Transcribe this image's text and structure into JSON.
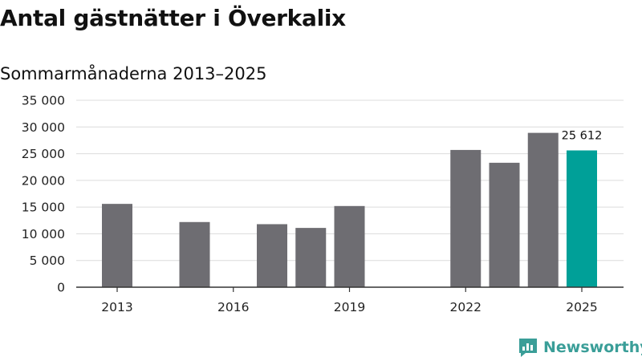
{
  "title": "Antal gästnätter i Överkalix",
  "subtitle": "Sommarmånaderna 2013–2025",
  "brand": "Newsworthy",
  "colors": {
    "bar": "#6e6d72",
    "highlight": "#00a098",
    "grid": "#dcdcdc",
    "axis": "#333333",
    "brand": "#3a9e98"
  },
  "chart_data": {
    "type": "bar",
    "title": "Antal gästnätter i Överkalix",
    "subtitle": "Sommarmånaderna 2013–2025",
    "xlabel": "",
    "ylabel": "",
    "ylim": [
      0,
      35000
    ],
    "yticks": [
      0,
      5000,
      10000,
      15000,
      20000,
      25000,
      30000,
      35000
    ],
    "ytick_labels": [
      "0",
      "5 000",
      "10 000",
      "15 000",
      "20 000",
      "25 000",
      "30 000",
      "35 000"
    ],
    "xtick_labels": [
      "2013",
      "2016",
      "2019",
      "2022",
      "2025"
    ],
    "grid": true,
    "categories": [
      "2013",
      "2014",
      "2015",
      "2016",
      "2017",
      "2018",
      "2019",
      "2020",
      "2021",
      "2022",
      "2023",
      "2024",
      "2025"
    ],
    "values": [
      15600,
      null,
      12200,
      null,
      11800,
      11100,
      15200,
      null,
      null,
      25700,
      23300,
      28900,
      25612
    ],
    "highlight_index": 12,
    "data_labels": [
      {
        "category": "2025",
        "text": "25 612"
      }
    ]
  }
}
